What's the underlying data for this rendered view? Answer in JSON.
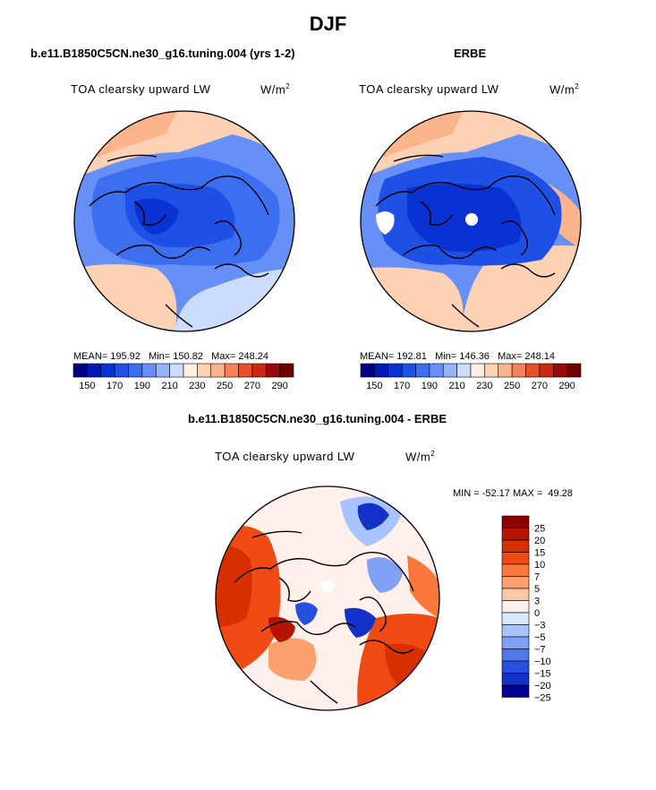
{
  "main_title": "DJF",
  "panels": {
    "model": {
      "title": "b.e11.B1850C5CN.ne30_g16.tuning.004 (yrs 1-2)",
      "variable": "TOA clearsky upward LW",
      "units": "W/m",
      "units_sup": "2",
      "stats": "MEAN= 195.92   Min= 150.82   Max= 248.24"
    },
    "obs": {
      "title": "ERBE",
      "variable": "TOA clearsky upward LW",
      "units": "W/m",
      "units_sup": "2",
      "stats": "MEAN= 192.81   Min= 146.36   Max= 248.14"
    },
    "diff": {
      "title": "b.e11.B1850C5CN.ne30_g16.tuning.004 - ERBE",
      "variable": "TOA clearsky upward LW",
      "units": "W/m",
      "units_sup": "2",
      "stats": "MIN = -52.17 MAX =  49.28"
    }
  },
  "chart_data": [
    {
      "type": "heatmap",
      "projection": "north polar stereographic",
      "title": "b.e11.B1850C5CN.ne30_g16.tuning.004 (yrs 1-2)",
      "variable": "TOA clearsky upward LW",
      "units": "W/m2",
      "mean": 195.92,
      "min": 150.82,
      "max": 248.24,
      "colorbar_levels": [
        150,
        160,
        170,
        180,
        190,
        200,
        210,
        220,
        230,
        240,
        250,
        260,
        270,
        280,
        290
      ],
      "colorbar_tick_labels": [
        "150",
        "170",
        "190",
        "210",
        "230",
        "250",
        "270",
        "290"
      ]
    },
    {
      "type": "heatmap",
      "projection": "north polar stereographic",
      "title": "ERBE",
      "variable": "TOA clearsky upward LW",
      "units": "W/m2",
      "mean": 192.81,
      "min": 146.36,
      "max": 248.14,
      "colorbar_levels": [
        150,
        160,
        170,
        180,
        190,
        200,
        210,
        220,
        230,
        240,
        250,
        260,
        270,
        280,
        290
      ],
      "colorbar_tick_labels": [
        "150",
        "170",
        "190",
        "210",
        "230",
        "250",
        "270",
        "290"
      ]
    },
    {
      "type": "heatmap",
      "projection": "north polar stereographic",
      "title": "b.e11.B1850C5CN.ne30_g16.tuning.004 - ERBE",
      "variable": "TOA clearsky upward LW",
      "units": "W/m2",
      "min": -52.17,
      "max": 49.28,
      "colorbar_levels": [
        "25",
        "20",
        "15",
        "10",
        "7",
        "5",
        "3",
        "0",
        "−3",
        "−5",
        "−7",
        "−10",
        "−15",
        "−20",
        "−25"
      ]
    }
  ],
  "colors": {
    "seq": [
      "#000080",
      "#0018b4",
      "#0a32d2",
      "#1e50e6",
      "#3c6ef0",
      "#6690f5",
      "#96b4fa",
      "#cbdcff",
      "#fff0e6",
      "#fdd2b4",
      "#fcb48c",
      "#f5825a",
      "#e65028",
      "#c82814",
      "#960a0a",
      "#6e0000"
    ],
    "div": [
      "#8c0000",
      "#b41400",
      "#d73000",
      "#f04b14",
      "#fa783c",
      "#fca06e",
      "#ffc8a5",
      "#fff0eb",
      "#dce8ff",
      "#a8c4ff",
      "#7ea0f5",
      "#5078e6",
      "#2850e0",
      "#1432c8",
      "#000096"
    ]
  }
}
